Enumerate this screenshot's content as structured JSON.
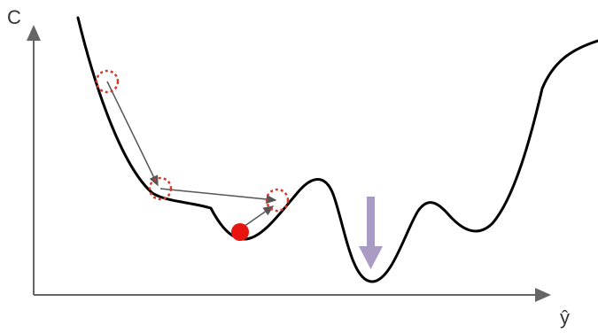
{
  "axes": {
    "y_label": "C",
    "x_label": "ŷ"
  },
  "colors": {
    "axis": "#666666",
    "curve": "#000000",
    "step_marker": "#d63a2a",
    "step_arrow": "#555555",
    "ball": "#e8150e",
    "down_arrow": "#a99bc4"
  }
}
